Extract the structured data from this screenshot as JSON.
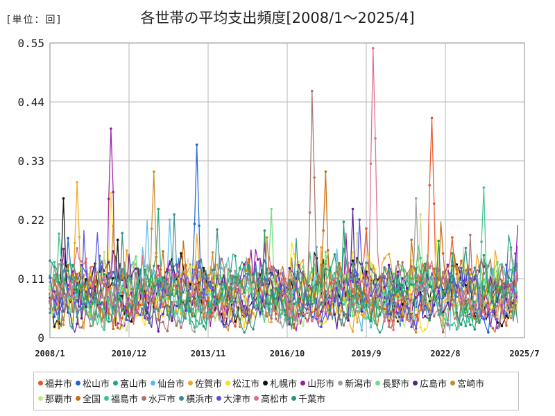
{
  "header": {
    "unit_label": "[単位：回]",
    "title": "各世帯の平均支出頻度[2008/1～2025/4]"
  },
  "chart_data": {
    "type": "line",
    "title": "各世帯の平均支出頻度[2008/1～2025/4]",
    "unit": "[単位：回]",
    "xlabel": "",
    "ylabel": "",
    "ylim": [
      0,
      0.55
    ],
    "y_ticks": [
      "0",
      "0.11",
      "0.22",
      "0.33",
      "0.44",
      "0.55"
    ],
    "x_range": [
      "2008/1",
      "2025/7"
    ],
    "x_ticks": [
      "2008/1",
      "2010/12",
      "2013/11",
      "2016/10",
      "2019/9",
      "2022/8",
      "2025/7"
    ],
    "grid": true,
    "legend_position": "bottom",
    "series": [
      {
        "name": "福井市",
        "color": "#e8542a",
        "peak": {
          "x": "2022/2",
          "y": 0.41
        }
      },
      {
        "name": "松山市",
        "color": "#1f62d6",
        "peak": {
          "x": "2013/6",
          "y": 0.36
        }
      },
      {
        "name": "富山市",
        "color": "#1fa67a",
        "peak": {
          "x": "2012/1",
          "y": 0.24
        }
      },
      {
        "name": "仙台市",
        "color": "#5bb8e8",
        "peak": {
          "x": "2012/6",
          "y": 0.22
        }
      },
      {
        "name": "佐賀市",
        "color": "#f2a61c",
        "peak": {
          "x": "2009/1",
          "y": 0.29
        }
      },
      {
        "name": "松江市",
        "color": "#f5e21a",
        "peak": {
          "x": "2010/4",
          "y": 0.27
        }
      },
      {
        "name": "札幌市",
        "color": "#111111",
        "peak": {
          "x": "2008/7",
          "y": 0.26
        }
      },
      {
        "name": "山形市",
        "color": "#9b1aa6",
        "peak": {
          "x": "2010/4",
          "y": 0.39
        }
      },
      {
        "name": "新潟市",
        "color": "#9e9e9e",
        "peak": {
          "x": "2021/7",
          "y": 0.26
        }
      },
      {
        "name": "長野市",
        "color": "#6de07a",
        "peak": {
          "x": "2016/3",
          "y": 0.24
        }
      },
      {
        "name": "広島市",
        "color": "#5a1e9a",
        "peak": {
          "x": "2019/3",
          "y": 0.24
        }
      },
      {
        "name": "宮崎市",
        "color": "#c98a2e",
        "peak": {
          "x": "2011/11",
          "y": 0.31
        }
      },
      {
        "name": "那覇市",
        "color": "#c5e68a",
        "peak": {
          "x": "2021/9",
          "y": 0.23
        }
      },
      {
        "name": "全国",
        "color": "#c96a0a",
        "peak": {
          "x": "2018/3",
          "y": 0.31
        }
      },
      {
        "name": "福島市",
        "color": "#3ec48a",
        "peak": {
          "x": "2024/1",
          "y": 0.28
        }
      },
      {
        "name": "水戸市",
        "color": "#a6736a",
        "peak": {
          "x": "2017/9",
          "y": 0.46
        }
      },
      {
        "name": "横浜市",
        "color": "#3a8f88",
        "peak": {
          "x": "2012/8",
          "y": 0.23
        }
      },
      {
        "name": "大津市",
        "color": "#5a4ee0",
        "peak": {
          "x": "2019/6",
          "y": 0.22
        }
      },
      {
        "name": "高松市",
        "color": "#d9708a",
        "peak": {
          "x": "2019/12",
          "y": 0.54
        }
      },
      {
        "name": "千葉市",
        "color": "#1a9e6a",
        "peak": {
          "x": "2015/12",
          "y": 0.2
        }
      }
    ]
  }
}
